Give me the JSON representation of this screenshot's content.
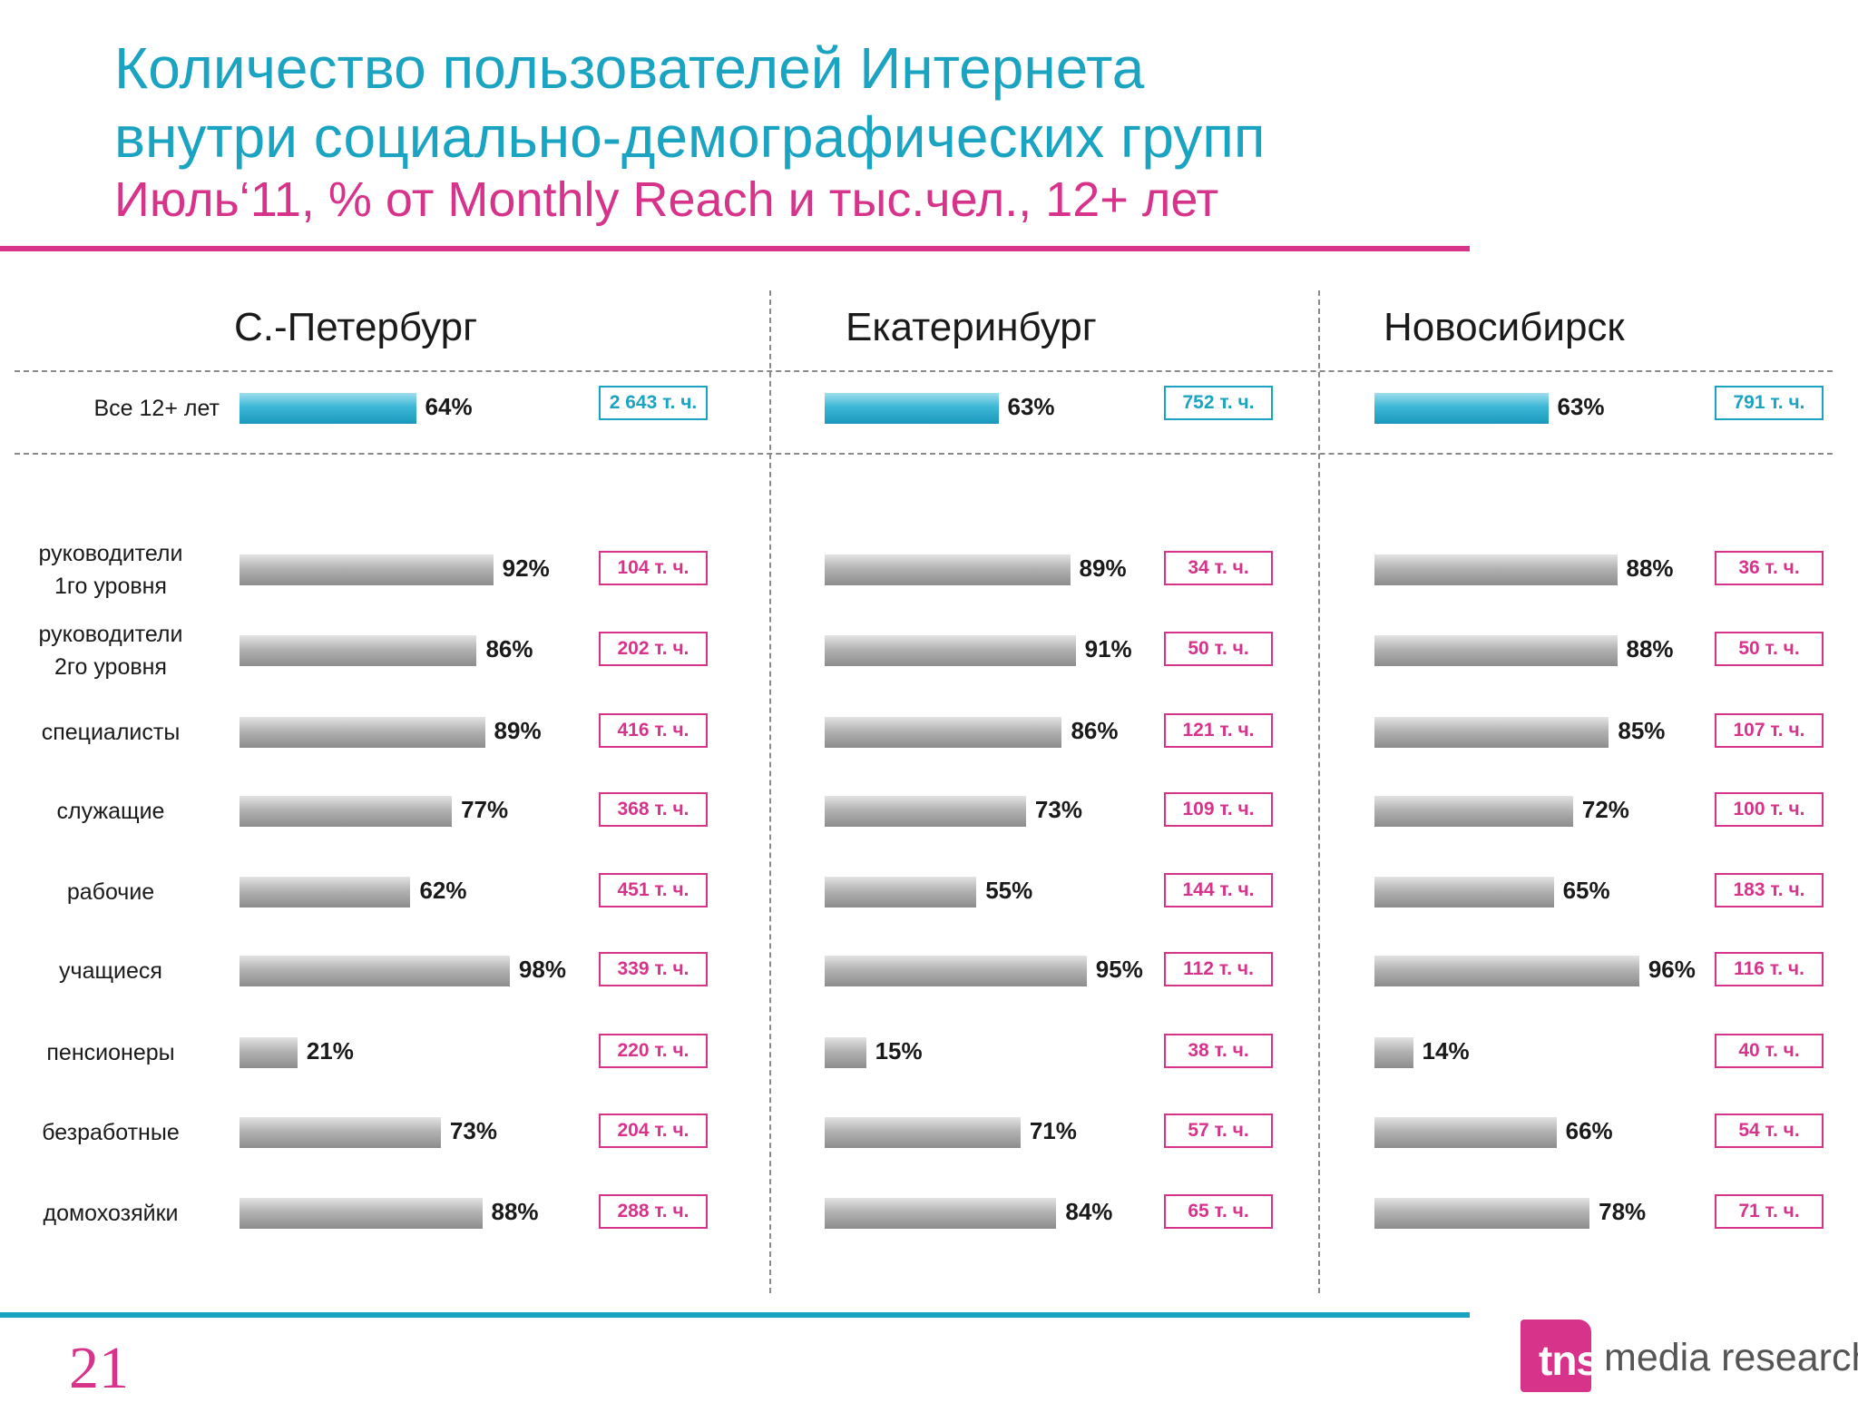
{
  "header": {
    "title_line1": "Количество пользователей Интернета",
    "title_line2": "внутри социально-демографических групп",
    "subtitle": "Июль‘11, % от Monthly Reach и тыс.чел., 12+ лет"
  },
  "colors": {
    "title": "#1ba3c2",
    "accent": "#d8338b",
    "bar_total": "#3db7d6",
    "bar_group": "#a6a6a6"
  },
  "chart_data": {
    "type": "bar",
    "orientation": "horizontal",
    "value_unit": "% от Monthly Reach",
    "count_unit": "т. ч.",
    "total_row": {
      "label": "Все 12+ лет"
    },
    "categories": [
      [
        "руководители",
        "1го уровня"
      ],
      [
        "руководители",
        "2го уровня"
      ],
      [
        "специалисты"
      ],
      [
        "служащие"
      ],
      [
        "рабочие"
      ],
      [
        "учащиеся"
      ],
      [
        "пенсионеры"
      ],
      [
        "безработные"
      ],
      [
        "домохозяйки"
      ]
    ],
    "panels": [
      {
        "city": "С.-Петербург",
        "total": {
          "value": 64,
          "label": "64%",
          "count": "2 643 т. ч."
        },
        "values": [
          92,
          86,
          89,
          77,
          62,
          98,
          21,
          73,
          88
        ],
        "value_labels": [
          "92%",
          "86%",
          "89%",
          "77%",
          "62%",
          "98%",
          "21%",
          "73%",
          "88%"
        ],
        "counts": [
          "104 т. ч.",
          "202 т. ч.",
          "416 т. ч.",
          "368 т. ч.",
          "451 т. ч.",
          "339 т. ч.",
          "220 т. ч.",
          "204 т. ч.",
          "288 т. ч."
        ]
      },
      {
        "city": "Екатеринбург",
        "total": {
          "value": 63,
          "label": "63%",
          "count": "752 т. ч."
        },
        "values": [
          89,
          91,
          86,
          73,
          55,
          95,
          15,
          71,
          84
        ],
        "value_labels": [
          "89%",
          "91%",
          "86%",
          "73%",
          "55%",
          "95%",
          "15%",
          "71%",
          "84%"
        ],
        "counts": [
          "34 т. ч.",
          "50 т. ч.",
          "121 т. ч.",
          "109 т. ч.",
          "144 т. ч.",
          "112 т. ч.",
          "38 т. ч.",
          "57 т. ч.",
          "65 т. ч."
        ]
      },
      {
        "city": "Новосибирск",
        "total": {
          "value": 63,
          "label": "63%",
          "count": "791 т. ч."
        },
        "values": [
          88,
          88,
          85,
          72,
          65,
          96,
          14,
          66,
          78
        ],
        "value_labels": [
          "88%",
          "88%",
          "85%",
          "72%",
          "65%",
          "96%",
          "14%",
          "66%",
          "78%"
        ],
        "counts": [
          "36 т. ч.",
          "50 т. ч.",
          "107 т. ч.",
          "100 т. ч.",
          "183 т. ч.",
          "116 т. ч.",
          "40 т. ч.",
          "54 т. ч.",
          "71 т. ч."
        ]
      }
    ]
  },
  "footer": {
    "page_number": "21",
    "logo_mark": "tns",
    "logo_text": "media research"
  }
}
